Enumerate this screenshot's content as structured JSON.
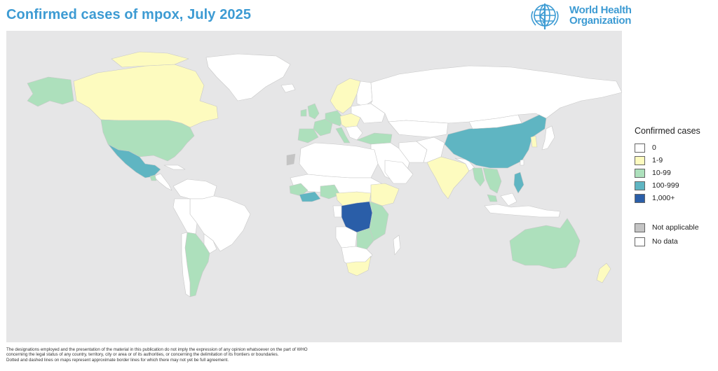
{
  "title": "Confirmed cases of mpox, July 2025",
  "logo": {
    "icon": "who-emblem-icon",
    "line1": "World Health",
    "line2": "Organization",
    "color": "#3d9bd3"
  },
  "colors": {
    "ocean": "#e6e6e7",
    "zero": "#ffffff",
    "bin_1_9": "#fdfbbf",
    "bin_10_99": "#ade0bc",
    "bin_100_999": "#5fb5c2",
    "bin_1000_plus": "#2a5ea8",
    "not_applicable": "#c4c4c4",
    "border": "#c8c8c8"
  },
  "legend": {
    "title": "Confirmed cases",
    "items": [
      {
        "label": "0",
        "color": "#ffffff"
      },
      {
        "label": "1-9",
        "color": "#fdfbbf"
      },
      {
        "label": "10-99",
        "color": "#ade0bc"
      },
      {
        "label": "100-999",
        "color": "#5fb5c2"
      },
      {
        "label": "1,000+",
        "color": "#2a5ea8"
      }
    ],
    "extra": [
      {
        "label": "Not applicable",
        "color": "#c4c4c4"
      },
      {
        "label": "No data",
        "color": "#ffffff"
      }
    ]
  },
  "disclaimer": {
    "line1": "The designations employed and the presentation of the material in this publication do not imply the expression of any opinion whatsoever on the part of WHO",
    "line2": "concerning the legal status of any country, territory, city or area or of its authorities, or concerning the delimitation of its frontiers or boundaries.",
    "line3": "Dotted and dashed lines on maps represent approximate border lines for which there may not yet be full agreement."
  }
}
